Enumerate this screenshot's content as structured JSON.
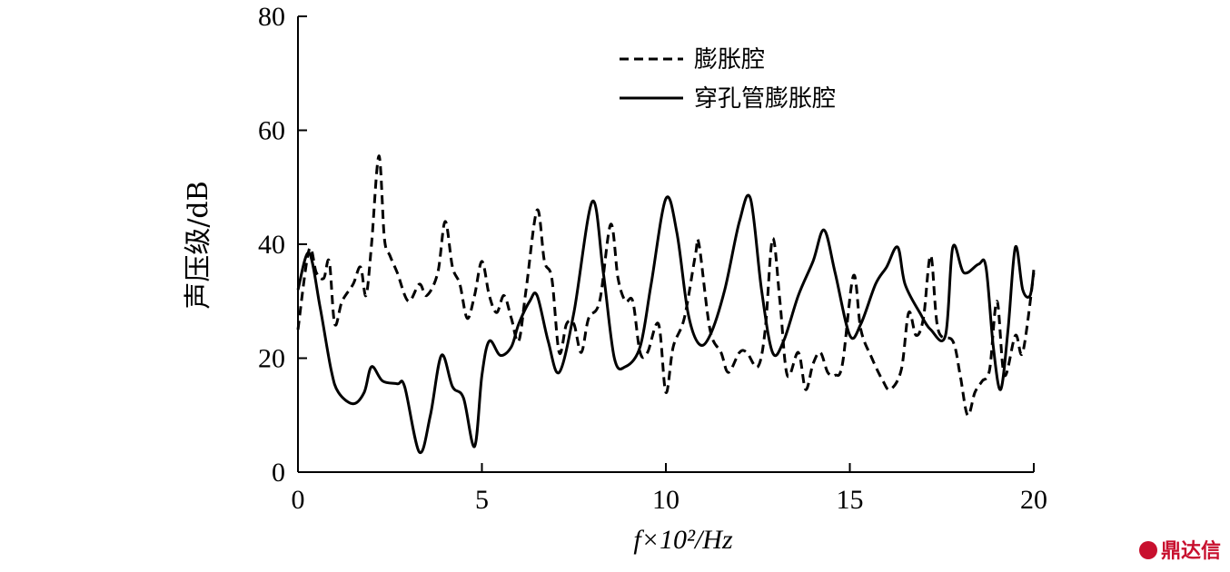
{
  "chart_data": {
    "type": "line",
    "xlabel": "f×10²/Hz",
    "ylabel": "声压级/dB",
    "xlim": [
      0,
      20
    ],
    "ylim": [
      0,
      80
    ],
    "xticks": [
      0,
      5,
      10,
      15,
      20
    ],
    "yticks": [
      0,
      20,
      40,
      60,
      80
    ],
    "grid": false,
    "legend": "top",
    "watermark": "鼎达信",
    "series": [
      {
        "name": "膨胀腔",
        "color": "#000000",
        "dash": true,
        "x": [
          0,
          0.3,
          0.5,
          0.7,
          0.85,
          1.0,
          1.2,
          1.5,
          1.7,
          1.85,
          2.0,
          2.2,
          2.35,
          2.5,
          2.7,
          3.0,
          3.3,
          3.5,
          3.8,
          4.0,
          4.2,
          4.4,
          4.6,
          4.8,
          5.0,
          5.2,
          5.4,
          5.6,
          5.8,
          6.0,
          6.2,
          6.5,
          6.7,
          6.9,
          7.1,
          7.3,
          7.5,
          7.7,
          7.9,
          8.2,
          8.5,
          8.7,
          8.9,
          9.1,
          9.3,
          9.5,
          9.8,
          10.0,
          10.2,
          10.5,
          10.8,
          10.9,
          11.2,
          11.5,
          11.7,
          12.0,
          12.2,
          12.5,
          12.7,
          12.9,
          13.1,
          13.3,
          13.6,
          13.8,
          14.0,
          14.2,
          14.4,
          14.6,
          14.8,
          15.1,
          15.3,
          15.6,
          15.9,
          16.1,
          16.4,
          16.6,
          16.8,
          17.0,
          17.2,
          17.4,
          17.8,
          18.0,
          18.2,
          18.4,
          18.6,
          18.8,
          19.0,
          19.2,
          19.5,
          19.7,
          20.0
        ],
        "values": [
          25,
          39,
          35,
          34,
          37,
          26,
          30,
          33,
          36,
          31,
          40,
          55.5,
          41,
          38,
          35,
          30,
          33,
          31,
          35,
          44,
          36,
          33,
          27,
          31,
          37,
          31,
          28,
          31,
          27,
          23,
          32,
          46,
          37,
          34,
          21,
          26,
          26,
          21,
          27,
          30,
          43.5,
          34,
          30,
          30,
          21,
          21,
          26,
          14,
          22,
          27,
          38,
          40,
          25,
          21,
          17.5,
          21,
          21,
          18.5,
          25,
          41,
          30,
          17,
          21,
          14.5,
          19,
          21,
          17.5,
          17,
          19,
          34.5,
          25,
          20,
          16,
          14.5,
          18,
          28,
          24,
          27,
          38,
          25,
          23,
          17,
          10,
          14,
          16,
          18,
          30,
          17,
          24,
          21,
          35
        ]
      },
      {
        "name": "穿孔管膨胀腔",
        "color": "#000000",
        "dash": false,
        "x": [
          0,
          0.3,
          0.6,
          0.9,
          1.1,
          1.5,
          1.8,
          2.0,
          2.3,
          2.7,
          2.9,
          3.3,
          3.6,
          3.9,
          4.2,
          4.5,
          4.8,
          5.0,
          5.2,
          5.5,
          5.8,
          6.0,
          6.3,
          6.5,
          6.8,
          7.1,
          7.5,
          8.0,
          8.3,
          8.6,
          8.9,
          9.3,
          9.6,
          10.0,
          10.3,
          10.6,
          10.9,
          11.2,
          11.6,
          12.0,
          12.3,
          12.6,
          12.9,
          13.2,
          13.6,
          14.0,
          14.3,
          14.6,
          15.0,
          15.3,
          15.7,
          16.0,
          16.3,
          16.5,
          16.9,
          17.2,
          17.6,
          17.8,
          18.1,
          18.5,
          18.7,
          18.9,
          19.1,
          19.3,
          19.5,
          19.7,
          19.9,
          20.0
        ],
        "values": [
          32,
          38.5,
          29,
          18,
          14,
          12,
          14,
          18.5,
          16,
          15.5,
          15,
          3.5,
          10,
          20.5,
          15,
          13,
          4.5,
          17,
          23,
          20.5,
          22,
          26,
          30,
          31,
          23,
          17.5,
          28,
          47.5,
          35,
          20,
          18.5,
          22,
          33,
          48,
          42,
          28,
          22.5,
          24,
          32,
          44,
          48,
          32,
          21,
          23,
          31,
          37,
          42.5,
          35,
          24,
          26,
          33,
          36,
          39.5,
          33,
          28,
          25,
          24,
          39.5,
          35,
          36.5,
          36,
          22,
          14.5,
          25,
          39.5,
          32,
          31,
          35.5
        ]
      }
    ]
  }
}
